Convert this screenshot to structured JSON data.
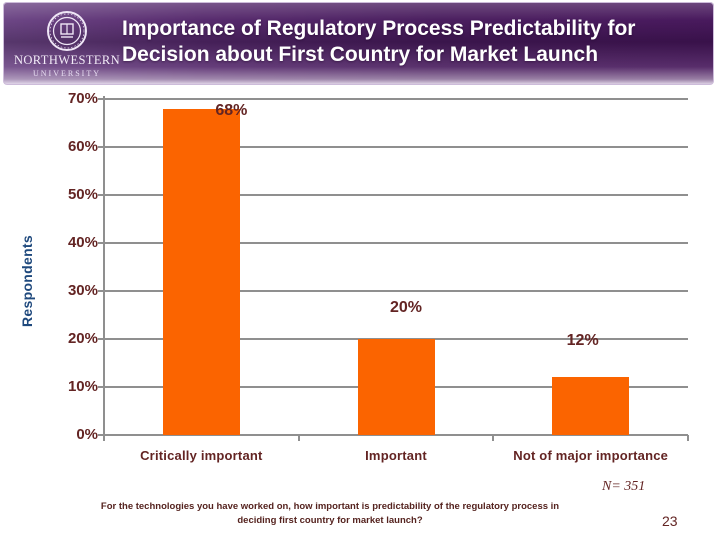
{
  "header": {
    "logo_line1": "NORTHWESTERN",
    "logo_line2": "UNIVERSITY",
    "title_line1": "Importance of Regulatory Process Predictability for",
    "title_line2": "Decision about First Country for Market Launch"
  },
  "chart_data": {
    "type": "bar",
    "categories": [
      "Critically important",
      "Important",
      "Not of major importance"
    ],
    "values": [
      68,
      20,
      12
    ],
    "value_labels": [
      "68%",
      "20%",
      "12%"
    ],
    "title": "",
    "xlabel": "",
    "ylabel": "Respondents",
    "ylim": [
      0,
      70
    ],
    "ytick_values": [
      0,
      10,
      20,
      30,
      40,
      50,
      60,
      70
    ],
    "ytick_labels": [
      "0%",
      "10%",
      "20%",
      "30%",
      "40%",
      "50%",
      "60%",
      "70%"
    ],
    "grid": true,
    "legend": false,
    "bar_color": "#FB6400",
    "gridline_color": "#8f8f8f",
    "tick_label_color": "#632423",
    "data_label_color": "#632423",
    "ylabel_color": "#1F497D"
  },
  "footnote": {
    "n_label": "N= 351",
    "question_line1": "For the technologies you have worked on, how important is predictability of the regulatory process in",
    "question_line2": "deciding first country for market launch?",
    "page_number": "23"
  },
  "colors": {
    "banner_purple_dark": "#47155A",
    "banner_purple_light": "#6A4383",
    "banner_bottom_edge": "#D9CCE6",
    "title_text": "#FFFFFF",
    "slide_background": "#FFFFFF"
  }
}
